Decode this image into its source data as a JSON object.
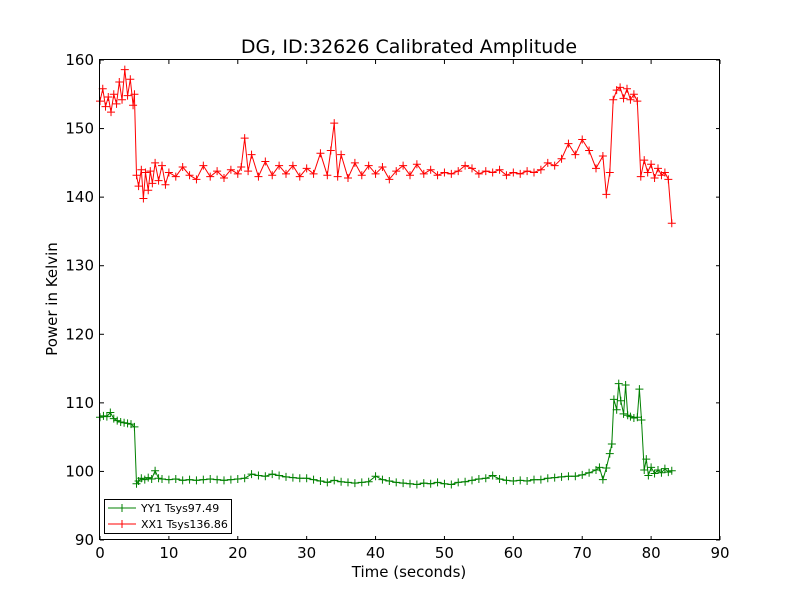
{
  "chart_data": {
    "type": "line",
    "title": "DG, ID:32626 Calibrated Amplitude",
    "xlabel": "Time (seconds)",
    "ylabel": "Power in Kelvin",
    "xlim": [
      0,
      90
    ],
    "ylim": [
      90,
      160
    ],
    "xticks": [
      0,
      10,
      20,
      30,
      40,
      50,
      60,
      70,
      80,
      90
    ],
    "yticks": [
      90,
      100,
      110,
      120,
      130,
      140,
      150,
      160
    ],
    "grid": false,
    "legend_position": "lower-left",
    "marker": "+",
    "series": [
      {
        "name": "YY1 Tsys97.49",
        "color": "#008000",
        "x": [
          0,
          0.5,
          1,
          1.5,
          2,
          2.5,
          3,
          3.5,
          4,
          4.5,
          5,
          5.3,
          5.6,
          6,
          6.5,
          7,
          7.5,
          8,
          8.5,
          9,
          10,
          11,
          12,
          13,
          14,
          15,
          16,
          17,
          18,
          19,
          20,
          21,
          22,
          23,
          24,
          25,
          26,
          27,
          28,
          29,
          30,
          31,
          32,
          33,
          34,
          35,
          36,
          37,
          38,
          39,
          40,
          41,
          42,
          43,
          44,
          45,
          46,
          47,
          48,
          49,
          50,
          51,
          52,
          53,
          54,
          55,
          56,
          57,
          58,
          59,
          60,
          61,
          62,
          63,
          64,
          65,
          66,
          67,
          68,
          69,
          70,
          71,
          72,
          72.5,
          73,
          73.5,
          74,
          74.3,
          74.6,
          75,
          75.3,
          75.6,
          76,
          76.3,
          76.6,
          77,
          77.5,
          78,
          78.3,
          78.6,
          79,
          79.3,
          79.6,
          80,
          80.5,
          81,
          81.5,
          82,
          82.5,
          83
        ],
        "y": [
          107.9,
          108.1,
          108.0,
          108.6,
          107.7,
          107.4,
          107.2,
          107.1,
          107.0,
          106.9,
          106.5,
          98.2,
          98.6,
          99.0,
          98.8,
          99.1,
          98.9,
          100.1,
          99.0,
          98.9,
          98.8,
          98.9,
          98.7,
          98.8,
          98.7,
          98.8,
          98.9,
          98.8,
          98.7,
          98.8,
          98.9,
          99.0,
          99.6,
          99.4,
          99.3,
          99.6,
          99.4,
          99.2,
          99.1,
          99.0,
          99.0,
          98.8,
          98.6,
          98.4,
          98.7,
          98.5,
          98.4,
          98.3,
          98.4,
          98.5,
          99.3,
          98.8,
          98.6,
          98.4,
          98.3,
          98.2,
          98.1,
          98.3,
          98.2,
          98.4,
          98.2,
          98.1,
          98.4,
          98.5,
          98.7,
          98.9,
          99.0,
          99.4,
          98.9,
          98.7,
          98.6,
          98.7,
          98.6,
          98.8,
          98.8,
          99.0,
          99.1,
          99.2,
          99.3,
          99.3,
          99.5,
          99.8,
          100.2,
          100.6,
          98.8,
          100.5,
          102.6,
          104.0,
          110.5,
          109.0,
          112.8,
          110.3,
          108.4,
          112.6,
          108.2,
          108.0,
          107.8,
          107.9,
          112.0,
          107.5,
          100.2,
          101.8,
          99.4,
          100.6,
          99.7,
          100.2,
          99.8,
          100.4,
          99.9,
          100.1
        ]
      },
      {
        "name": "XX1 Tsys136.86",
        "color": "#ff0000",
        "x": [
          0,
          0.4,
          0.8,
          1.2,
          1.6,
          2,
          2.4,
          2.8,
          3.2,
          3.6,
          4,
          4.4,
          4.8,
          5,
          5.3,
          5.6,
          6,
          6.3,
          6.6,
          7,
          7.3,
          7.6,
          8,
          8.5,
          9,
          9.5,
          10,
          11,
          12,
          13,
          14,
          15,
          16,
          17,
          18,
          19,
          20,
          20.5,
          21,
          21.5,
          22,
          23,
          24,
          25,
          26,
          27,
          28,
          29,
          30,
          31,
          32,
          33,
          33.5,
          34,
          34.5,
          35,
          36,
          37,
          38,
          39,
          40,
          41,
          42,
          43,
          44,
          45,
          46,
          47,
          48,
          49,
          50,
          51,
          52,
          53,
          54,
          55,
          56,
          57,
          58,
          59,
          60,
          61,
          62,
          63,
          64,
          65,
          66,
          67,
          68,
          69,
          70,
          71,
          72,
          73,
          73.5,
          74,
          74.5,
          75,
          75.5,
          76,
          76.5,
          77,
          77.5,
          78,
          78.5,
          79,
          79.5,
          80,
          80.5,
          81,
          81.5,
          82,
          82.5,
          83
        ],
        "y": [
          154.0,
          155.8,
          153.2,
          154.6,
          152.4,
          155.0,
          153.6,
          156.8,
          154.2,
          158.6,
          154.8,
          157.2,
          153.4,
          155.0,
          143.2,
          141.6,
          144.0,
          139.8,
          143.6,
          141.0,
          143.8,
          142.0,
          145.0,
          142.4,
          144.6,
          141.8,
          143.6,
          143.0,
          144.4,
          143.2,
          142.6,
          144.6,
          143.0,
          143.8,
          142.8,
          144.0,
          143.4,
          144.4,
          148.6,
          143.8,
          146.2,
          143.0,
          145.2,
          143.2,
          144.6,
          143.4,
          144.6,
          143.0,
          144.2,
          143.4,
          146.4,
          143.2,
          146.8,
          150.8,
          143.0,
          146.2,
          142.8,
          145.0,
          143.2,
          144.6,
          143.4,
          144.4,
          142.6,
          143.8,
          144.6,
          143.2,
          144.8,
          143.4,
          144.0,
          143.2,
          143.6,
          143.4,
          143.8,
          144.6,
          144.2,
          143.4,
          143.8,
          143.6,
          144.0,
          143.2,
          143.6,
          143.4,
          143.8,
          143.6,
          144.0,
          145.0,
          144.6,
          145.6,
          147.8,
          146.2,
          148.4,
          146.8,
          144.2,
          146.0,
          140.4,
          143.6,
          154.2,
          155.6,
          156.0,
          154.4,
          155.8,
          154.2,
          155.0,
          154.0,
          143.0,
          145.4,
          143.6,
          144.8,
          142.8,
          144.2,
          143.2,
          143.6,
          142.6,
          136.2
        ]
      }
    ]
  }
}
